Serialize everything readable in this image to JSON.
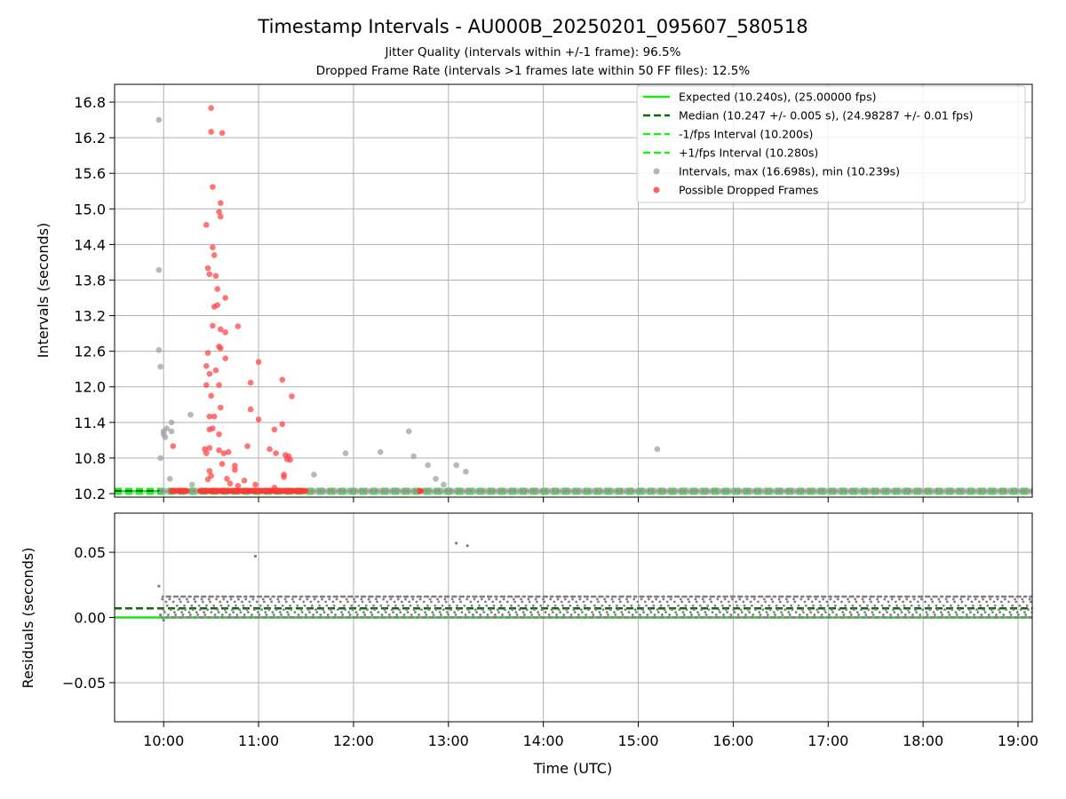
{
  "title": "Timestamp Intervals - AU000B_20250201_095607_580518",
  "subtitle_1": "Jitter Quality (intervals within +/-1 frame): 96.5%",
  "subtitle_2": "Dropped Frame Rate (intervals >1 frames late within 50 FF files): 12.5%",
  "colors": {
    "expected": "#19e619",
    "median": "#0a6b0a",
    "bound": "#22ee22",
    "intervals": "#a0a0a0",
    "dropped": "#ff3b3b",
    "residuals": "#7f7f7f",
    "grid": "#b0b0b0"
  },
  "chart_data": [
    {
      "type": "scatter",
      "panel": "intervals",
      "ylabel": "Intervals (seconds)",
      "ylim": [
        10.14,
        17.1
      ],
      "xlim": [
        "09:29",
        "19:09"
      ],
      "grid": true,
      "legend_position": "top-right",
      "y_ticks": [
        "10.2",
        "10.8",
        "11.4",
        "12.0",
        "12.6",
        "13.2",
        "13.8",
        "14.4",
        "15.0",
        "15.6",
        "16.2",
        "16.8"
      ],
      "y_tick_values": [
        10.2,
        10.8,
        11.4,
        12.0,
        12.6,
        13.2,
        13.8,
        14.4,
        15.0,
        15.6,
        16.2,
        16.8
      ],
      "reference_lines": [
        {
          "name": "Expected (10.240s), (25.00000 fps)",
          "y": 10.24,
          "style": "solid",
          "color_key": "expected"
        },
        {
          "name": "Median (10.247 +/- 0.005 s), (24.98287 +/- 0.01 fps)",
          "y": 10.247,
          "style": "dashed",
          "color_key": "median"
        },
        {
          "name": "-1/fps Interval (10.200s)",
          "y": 10.2,
          "style": "dashed",
          "color_key": "bound"
        },
        {
          "name": "+1/fps Interval (10.280s)",
          "y": 10.28,
          "style": "dashed",
          "color_key": "bound"
        }
      ],
      "series": [
        {
          "name": "Intervals, max (16.698s), min (10.239s)",
          "color_key": "intervals",
          "baseline": {
            "y": 10.245,
            "from": "09:59",
            "to": "19:09",
            "step_minutes": 2.5
          },
          "points": [
            [
              "09:57",
              16.5
            ],
            [
              "09:57",
              13.97
            ],
            [
              "09:57",
              12.62
            ],
            [
              "09:58",
              12.34
            ],
            [
              "09:58",
              10.8
            ],
            [
              "10:00",
              11.2
            ],
            [
              "10:00",
              11.25
            ],
            [
              "10:01",
              11.15
            ],
            [
              "10:02",
              11.3
            ],
            [
              "10:04",
              10.45
            ],
            [
              "10:05",
              11.4
            ],
            [
              "10:05",
              11.25
            ],
            [
              "10:17",
              11.53
            ],
            [
              "10:18",
              10.35
            ],
            [
              "11:35",
              10.52
            ],
            [
              "11:55",
              10.88
            ],
            [
              "12:17",
              10.9
            ],
            [
              "12:35",
              11.25
            ],
            [
              "12:38",
              10.83
            ],
            [
              "12:47",
              10.68
            ],
            [
              "12:52",
              10.45
            ],
            [
              "12:57",
              10.35
            ],
            [
              "13:05",
              10.68
            ],
            [
              "13:11",
              10.57
            ],
            [
              "15:12",
              10.95
            ]
          ]
        },
        {
          "name": "Possible Dropped Frames",
          "color_key": "dropped",
          "baseline": {
            "y": 10.245,
            "ranges": [
              [
                "10:05",
                "10:15"
              ],
              [
                "10:23",
                "11:30"
              ],
              [
                "12:42",
                "12:43"
              ]
            ],
            "step_minutes": 0.6
          },
          "points": [
            [
              "10:30",
              16.7
            ],
            [
              "10:30",
              16.3
            ],
            [
              "10:37",
              16.28
            ],
            [
              "10:31",
              15.37
            ],
            [
              "10:36",
              15.1
            ],
            [
              "10:35",
              14.95
            ],
            [
              "10:36",
              14.87
            ],
            [
              "10:27",
              14.73
            ],
            [
              "10:31",
              14.35
            ],
            [
              "10:32",
              14.22
            ],
            [
              "10:28",
              14.0
            ],
            [
              "10:29",
              13.9
            ],
            [
              "10:33",
              13.87
            ],
            [
              "10:34",
              13.65
            ],
            [
              "10:39",
              13.5
            ],
            [
              "10:32",
              13.35
            ],
            [
              "10:34",
              13.38
            ],
            [
              "10:31",
              13.03
            ],
            [
              "10:36",
              12.97
            ],
            [
              "10:47",
              13.02
            ],
            [
              "10:39",
              12.92
            ],
            [
              "10:35",
              12.68
            ],
            [
              "10:36",
              12.65
            ],
            [
              "10:28",
              12.57
            ],
            [
              "10:39",
              12.48
            ],
            [
              "10:27",
              12.35
            ],
            [
              "10:33",
              12.28
            ],
            [
              "10:29",
              12.22
            ],
            [
              "11:00",
              12.42
            ],
            [
              "10:55",
              12.07
            ],
            [
              "11:15",
              12.12
            ],
            [
              "10:27",
              12.03
            ],
            [
              "10:35",
              12.03
            ],
            [
              "10:30",
              11.85
            ],
            [
              "11:21",
              11.84
            ],
            [
              "10:36",
              11.65
            ],
            [
              "10:55",
              11.62
            ],
            [
              "10:29",
              11.5
            ],
            [
              "10:32",
              11.5
            ],
            [
              "11:00",
              11.45
            ],
            [
              "11:15",
              11.37
            ],
            [
              "10:29",
              11.28
            ],
            [
              "10:31",
              11.3
            ],
            [
              "10:35",
              11.2
            ],
            [
              "11:10",
              11.28
            ],
            [
              "10:06",
              11.0
            ],
            [
              "10:26",
              10.95
            ],
            [
              "10:29",
              10.97
            ],
            [
              "10:35",
              10.93
            ],
            [
              "10:41",
              10.9
            ],
            [
              "10:53",
              11.0
            ],
            [
              "11:07",
              10.95
            ],
            [
              "11:11",
              10.88
            ],
            [
              "10:27",
              10.88
            ],
            [
              "10:38",
              10.88
            ],
            [
              "11:17",
              10.85
            ],
            [
              "11:19",
              10.83
            ],
            [
              "11:18",
              10.78
            ],
            [
              "10:45",
              10.67
            ],
            [
              "10:45",
              10.6
            ],
            [
              "10:29",
              10.58
            ],
            [
              "11:16",
              10.52
            ],
            [
              "11:16",
              10.48
            ],
            [
              "10:28",
              10.44
            ],
            [
              "10:40",
              10.45
            ],
            [
              "10:51",
              10.42
            ],
            [
              "10:58",
              10.35
            ],
            [
              "10:30",
              10.5
            ],
            [
              "11:20",
              10.77
            ],
            [
              "10:37",
              10.7
            ],
            [
              "10:42",
              10.37
            ],
            [
              "11:10",
              10.3
            ],
            [
              "10:47",
              10.33
            ]
          ]
        }
      ]
    },
    {
      "type": "scatter",
      "panel": "residuals",
      "xlabel": "Time (UTC)",
      "ylabel": "Residuals (seconds)",
      "ylim": [
        -0.08,
        0.08
      ],
      "xlim": [
        "09:29",
        "19:09"
      ],
      "grid": true,
      "x_ticks": [
        "10:00",
        "11:00",
        "12:00",
        "13:00",
        "14:00",
        "15:00",
        "16:00",
        "17:00",
        "18:00",
        "19:00"
      ],
      "y_ticks": [
        "−0.05",
        "0.00",
        "0.05"
      ],
      "y_tick_values": [
        -0.05,
        0.0,
        0.05
      ],
      "reference_lines": [
        {
          "y": 0.0,
          "style": "solid",
          "color_key": "expected"
        },
        {
          "y": 0.007,
          "style": "dashed",
          "color_key": "median"
        }
      ],
      "series": [
        {
          "color_key": "residuals",
          "band": {
            "from": "09:59",
            "to": "19:09",
            "levels": [
              0.0,
              0.002,
              0.004,
              0.006,
              0.009,
              0.012,
              0.014,
              0.016
            ],
            "step_minutes": 1.6
          },
          "outliers": [
            [
              "09:57",
              0.024
            ],
            [
              "09:58",
              0.002
            ],
            [
              "10:00",
              -0.002
            ],
            [
              "10:58",
              0.047
            ],
            [
              "13:05",
              0.057
            ],
            [
              "13:12",
              0.055
            ]
          ]
        }
      ]
    }
  ]
}
